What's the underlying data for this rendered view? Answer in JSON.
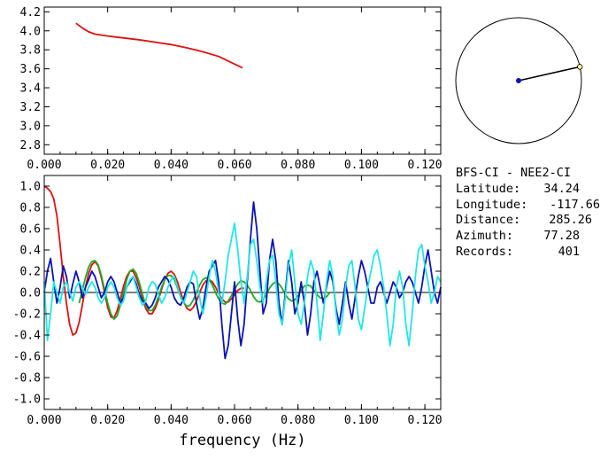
{
  "station_info": {
    "pair": "BFS-CI  -  NEE2-CI",
    "latitude_label": "Latitude:",
    "latitude_value": "34.24",
    "longitude_label": "Longitude:",
    "longitude_value": "-117.66",
    "distance_label": "Distance:",
    "distance_value": "285.26",
    "azimuth_label": "Azimuth:",
    "azimuth_value": "77.28",
    "records_label": "Records:",
    "records_value": "401"
  },
  "colors": {
    "red": "#dd1111",
    "blue": "#0a14b4",
    "cyan": "#22e6e6",
    "green": "#22aa22",
    "black": "#000000",
    "station_marker": "#ffff99",
    "center_marker": "#0a14b4"
  },
  "azimuth_plot": {
    "azimuth_deg": 77.28
  },
  "chart_data": [
    {
      "type": "line",
      "title": "",
      "xlabel": "",
      "ylabel": "",
      "xlim": [
        0.0,
        0.125
      ],
      "ylim": [
        2.7,
        4.25
      ],
      "x_ticks": [
        0.0,
        0.02,
        0.04,
        0.06,
        0.08,
        0.1,
        0.12
      ],
      "x_tick_labels": [
        "0.000",
        "0.020",
        "0.040",
        "0.060",
        "0.080",
        "0.100",
        "0.120"
      ],
      "y_ticks": [
        2.8,
        3.0,
        3.2,
        3.4,
        3.6,
        3.8,
        4.0,
        4.2
      ],
      "y_tick_labels": [
        "2.8",
        "3.0",
        "3.2",
        "3.4",
        "3.6",
        "3.8",
        "4.0",
        "4.2"
      ],
      "series": [
        {
          "color": "red",
          "x": [
            0.01,
            0.012,
            0.014,
            0.016,
            0.02,
            0.025,
            0.03,
            0.035,
            0.04,
            0.045,
            0.05,
            0.055,
            0.06,
            0.0625
          ],
          "y": [
            4.08,
            4.03,
            3.99,
            3.965,
            3.945,
            3.925,
            3.905,
            3.88,
            3.855,
            3.82,
            3.78,
            3.73,
            3.65,
            3.61
          ]
        }
      ]
    },
    {
      "type": "line",
      "title": "",
      "xlabel": "frequency  (Hz)",
      "ylabel": "",
      "xlim": [
        0.0,
        0.125
      ],
      "ylim": [
        -1.1,
        1.1
      ],
      "x_ticks": [
        0.0,
        0.02,
        0.04,
        0.06,
        0.08,
        0.1,
        0.12
      ],
      "x_tick_labels": [
        "0.000",
        "0.020",
        "0.040",
        "0.060",
        "0.080",
        "0.100",
        "0.120"
      ],
      "y_ticks": [
        1.0,
        0.8,
        0.6,
        0.4,
        0.2,
        0.0,
        -0.2,
        -0.4,
        -0.6,
        -0.8,
        -1.0
      ],
      "y_tick_labels": [
        "1.0",
        "0.8",
        "0.6",
        "0.4",
        "0.2",
        "0.0",
        "-0.2",
        "-0.4",
        "-0.6",
        "-0.8",
        "-1.0"
      ],
      "zero_line": true,
      "series": [
        {
          "color": "red",
          "x": [
            0.0,
            0.001,
            0.002,
            0.003,
            0.004,
            0.005,
            0.006,
            0.007,
            0.008,
            0.009,
            0.01,
            0.011,
            0.012,
            0.013,
            0.014,
            0.015,
            0.016,
            0.017,
            0.018,
            0.019,
            0.02,
            0.021,
            0.022,
            0.023,
            0.024,
            0.025,
            0.026,
            0.027,
            0.028,
            0.029,
            0.03,
            0.031,
            0.032,
            0.033,
            0.034,
            0.035,
            0.036,
            0.037,
            0.038,
            0.039,
            0.04,
            0.041,
            0.042,
            0.043,
            0.044,
            0.045,
            0.046,
            0.047,
            0.048,
            0.049,
            0.05,
            0.051,
            0.052,
            0.053,
            0.054,
            0.055,
            0.056,
            0.057,
            0.058,
            0.059,
            0.06,
            0.061,
            0.062,
            0.063
          ],
          "y": [
            1.0,
            0.98,
            0.95,
            0.88,
            0.72,
            0.45,
            0.15,
            -0.1,
            -0.3,
            -0.4,
            -0.38,
            -0.28,
            -0.12,
            0.05,
            0.18,
            0.26,
            0.29,
            0.25,
            0.14,
            0.0,
            -0.14,
            -0.23,
            -0.24,
            -0.17,
            -0.06,
            0.06,
            0.15,
            0.2,
            0.2,
            0.14,
            0.05,
            -0.06,
            -0.15,
            -0.2,
            -0.2,
            -0.15,
            -0.07,
            0.03,
            0.12,
            0.18,
            0.2,
            0.17,
            0.1,
            0.0,
            -0.09,
            -0.15,
            -0.17,
            -0.14,
            -0.08,
            0.0,
            0.07,
            0.11,
            0.12,
            0.1,
            0.05,
            -0.01,
            -0.06,
            -0.09,
            -0.09,
            -0.06,
            -0.02,
            0.02,
            0.04,
            0.04
          ]
        },
        {
          "color": "green",
          "x": [
            0.011,
            0.012,
            0.013,
            0.014,
            0.015,
            0.016,
            0.017,
            0.018,
            0.019,
            0.02,
            0.021,
            0.022,
            0.023,
            0.024,
            0.025,
            0.026,
            0.027,
            0.028,
            0.029,
            0.03,
            0.031,
            0.032,
            0.033,
            0.034,
            0.035,
            0.036,
            0.037,
            0.038,
            0.039,
            0.04,
            0.041,
            0.042,
            0.043,
            0.044,
            0.045,
            0.046,
            0.047,
            0.048,
            0.049,
            0.05,
            0.051,
            0.052,
            0.053,
            0.054,
            0.055,
            0.056,
            0.057,
            0.058,
            0.059,
            0.06,
            0.061,
            0.062,
            0.063,
            0.064,
            0.065,
            0.066,
            0.067,
            0.068,
            0.069,
            0.07,
            0.071,
            0.072,
            0.073,
            0.074,
            0.075,
            0.076,
            0.077,
            0.078,
            0.079,
            0.08,
            0.081,
            0.082,
            0.083,
            0.084,
            0.085,
            0.086,
            0.087,
            0.088,
            0.089,
            0.09
          ],
          "y": [
            -0.1,
            0.02,
            0.14,
            0.24,
            0.29,
            0.3,
            0.26,
            0.16,
            0.03,
            -0.1,
            -0.2,
            -0.25,
            -0.22,
            -0.12,
            0.0,
            0.12,
            0.2,
            0.22,
            0.18,
            0.09,
            -0.02,
            -0.12,
            -0.17,
            -0.17,
            -0.12,
            -0.04,
            0.05,
            0.12,
            0.16,
            0.16,
            0.12,
            0.04,
            -0.04,
            -0.1,
            -0.13,
            -0.12,
            -0.07,
            0.0,
            0.07,
            0.12,
            0.14,
            0.12,
            0.07,
            0.0,
            -0.06,
            -0.1,
            -0.11,
            -0.08,
            -0.03,
            0.03,
            0.08,
            0.11,
            0.1,
            0.07,
            0.02,
            -0.04,
            -0.08,
            -0.09,
            -0.07,
            -0.02,
            0.04,
            0.08,
            0.1,
            0.08,
            0.04,
            -0.02,
            -0.06,
            -0.08,
            -0.07,
            -0.03,
            0.02,
            0.06,
            0.07,
            0.06,
            0.02,
            -0.02,
            -0.05,
            -0.06,
            -0.04,
            0.0
          ]
        },
        {
          "color": "blue",
          "x": [
            0.0,
            0.001,
            0.002,
            0.003,
            0.004,
            0.005,
            0.006,
            0.007,
            0.008,
            0.009,
            0.01,
            0.011,
            0.012,
            0.013,
            0.014,
            0.015,
            0.016,
            0.017,
            0.018,
            0.019,
            0.02,
            0.021,
            0.022,
            0.023,
            0.024,
            0.025,
            0.026,
            0.027,
            0.028,
            0.029,
            0.03,
            0.031,
            0.032,
            0.033,
            0.034,
            0.035,
            0.036,
            0.037,
            0.038,
            0.039,
            0.04,
            0.041,
            0.042,
            0.043,
            0.044,
            0.045,
            0.046,
            0.047,
            0.048,
            0.049,
            0.05,
            0.051,
            0.052,
            0.053,
            0.054,
            0.055,
            0.056,
            0.057,
            0.058,
            0.059,
            0.06,
            0.061,
            0.062,
            0.063,
            0.064,
            0.065,
            0.066,
            0.067,
            0.068,
            0.069,
            0.07,
            0.071,
            0.072,
            0.073,
            0.074,
            0.075,
            0.076,
            0.077,
            0.078,
            0.079,
            0.08,
            0.081,
            0.082,
            0.083,
            0.084,
            0.085,
            0.086,
            0.087,
            0.088,
            0.089,
            0.09,
            0.091,
            0.092,
            0.093,
            0.094,
            0.095,
            0.096,
            0.097,
            0.098,
            0.099,
            0.1,
            0.101,
            0.102,
            0.103,
            0.104,
            0.105,
            0.106,
            0.107,
            0.108,
            0.109,
            0.11,
            0.111,
            0.112,
            0.113,
            0.114,
            0.115,
            0.116,
            0.117,
            0.118,
            0.119,
            0.12,
            0.121,
            0.122,
            0.123,
            0.124,
            0.125
          ],
          "y": [
            0.0,
            0.2,
            0.32,
            0.1,
            -0.1,
            0.05,
            0.25,
            0.15,
            -0.05,
            0.08,
            0.2,
            0.1,
            -0.05,
            0.05,
            0.12,
            0.2,
            0.15,
            0.05,
            -0.05,
            0.0,
            0.1,
            0.15,
            0.1,
            0.0,
            -0.1,
            -0.05,
            0.05,
            0.1,
            0.15,
            0.08,
            -0.02,
            -0.08,
            -0.1,
            -0.15,
            -0.12,
            -0.05,
            0.05,
            0.1,
            0.15,
            0.12,
            0.05,
            -0.05,
            -0.1,
            -0.12,
            -0.05,
            0.05,
            0.1,
            0.08,
            -0.1,
            -0.25,
            -0.15,
            0.05,
            0.2,
            0.25,
            0.3,
            0.1,
            -0.3,
            -0.62,
            -0.5,
            -0.2,
            0.1,
            -0.25,
            -0.5,
            -0.3,
            0.1,
            0.5,
            0.85,
            0.6,
            0.2,
            -0.2,
            -0.1,
            0.3,
            0.5,
            0.3,
            -0.1,
            -0.3,
            0.0,
            0.3,
            0.1,
            -0.2,
            -0.1,
            0.1,
            -0.1,
            -0.4,
            -0.2,
            0.1,
            0.2,
            0.05,
            -0.1,
            0.05,
            0.2,
            0.1,
            -0.15,
            -0.3,
            -0.1,
            0.1,
            -0.1,
            -0.25,
            -0.05,
            0.15,
            0.3,
            0.2,
            0.05,
            -0.1,
            -0.1,
            0.05,
            0.1,
            0.0,
            -0.1,
            0.0,
            0.1,
            0.05,
            -0.05,
            0.0,
            0.1,
            0.15,
            0.1,
            0.0,
            -0.1,
            0.05,
            0.25,
            0.4,
            0.2,
            0.0,
            -0.1,
            0.05
          ]
        },
        {
          "color": "cyan",
          "x": [
            0.0,
            0.001,
            0.002,
            0.003,
            0.004,
            0.005,
            0.006,
            0.007,
            0.008,
            0.009,
            0.01,
            0.011,
            0.012,
            0.013,
            0.014,
            0.015,
            0.016,
            0.017,
            0.018,
            0.019,
            0.02,
            0.021,
            0.022,
            0.023,
            0.024,
            0.025,
            0.026,
            0.027,
            0.028,
            0.029,
            0.03,
            0.031,
            0.032,
            0.033,
            0.034,
            0.035,
            0.036,
            0.037,
            0.038,
            0.039,
            0.04,
            0.041,
            0.042,
            0.043,
            0.044,
            0.045,
            0.046,
            0.047,
            0.048,
            0.049,
            0.05,
            0.051,
            0.052,
            0.053,
            0.054,
            0.055,
            0.056,
            0.057,
            0.058,
            0.059,
            0.06,
            0.061,
            0.062,
            0.063,
            0.064,
            0.065,
            0.066,
            0.067,
            0.068,
            0.069,
            0.07,
            0.071,
            0.072,
            0.073,
            0.074,
            0.075,
            0.076,
            0.077,
            0.078,
            0.079,
            0.08,
            0.081,
            0.082,
            0.083,
            0.084,
            0.085,
            0.086,
            0.087,
            0.088,
            0.089,
            0.09,
            0.091,
            0.092,
            0.093,
            0.094,
            0.095,
            0.096,
            0.097,
            0.098,
            0.099,
            0.1,
            0.101,
            0.102,
            0.103,
            0.104,
            0.105,
            0.106,
            0.107,
            0.108,
            0.109,
            0.11,
            0.111,
            0.112,
            0.113,
            0.114,
            0.115,
            0.116,
            0.117,
            0.118,
            0.119,
            0.12,
            0.121,
            0.122,
            0.123,
            0.124,
            0.125
          ],
          "y": [
            0.1,
            -0.45,
            -0.2,
            0.1,
            0.0,
            -0.1,
            0.05,
            0.1,
            0.0,
            -0.08,
            0.05,
            0.1,
            0.05,
            -0.02,
            0.05,
            0.1,
            0.05,
            -0.05,
            -0.1,
            -0.05,
            0.05,
            0.1,
            0.05,
            -0.05,
            -0.12,
            -0.08,
            0.05,
            0.12,
            0.15,
            0.05,
            -0.05,
            -0.12,
            -0.08,
            0.05,
            0.1,
            0.08,
            -0.02,
            -0.1,
            -0.05,
            0.05,
            0.12,
            0.15,
            0.05,
            -0.05,
            -0.1,
            0.0,
            0.1,
            0.2,
            0.15,
            -0.05,
            -0.2,
            -0.05,
            0.15,
            0.3,
            0.2,
            0.0,
            -0.1,
            0.1,
            0.35,
            0.5,
            0.65,
            0.4,
            0.1,
            -0.1,
            0.15,
            0.45,
            0.5,
            0.3,
            0.05,
            -0.1,
            0.1,
            0.3,
            0.35,
            0.1,
            -0.2,
            -0.3,
            -0.05,
            0.25,
            0.4,
            0.1,
            -0.2,
            -0.3,
            -0.1,
            0.15,
            0.3,
            0.2,
            -0.1,
            -0.45,
            -0.2,
            0.1,
            0.3,
            0.15,
            -0.2,
            -0.4,
            -0.25,
            0.05,
            0.25,
            0.3,
            0.05,
            -0.25,
            -0.35,
            -0.15,
            0.05,
            0.2,
            0.35,
            0.4,
            0.25,
            0.05,
            -0.2,
            -0.5,
            -0.3,
            0.05,
            0.2,
            0.05,
            -0.3,
            -0.5,
            -0.2,
            0.15,
            0.4,
            0.45,
            0.25,
            0.1,
            -0.1,
            0.0,
            0.15,
            0.1
          ]
        }
      ]
    }
  ]
}
